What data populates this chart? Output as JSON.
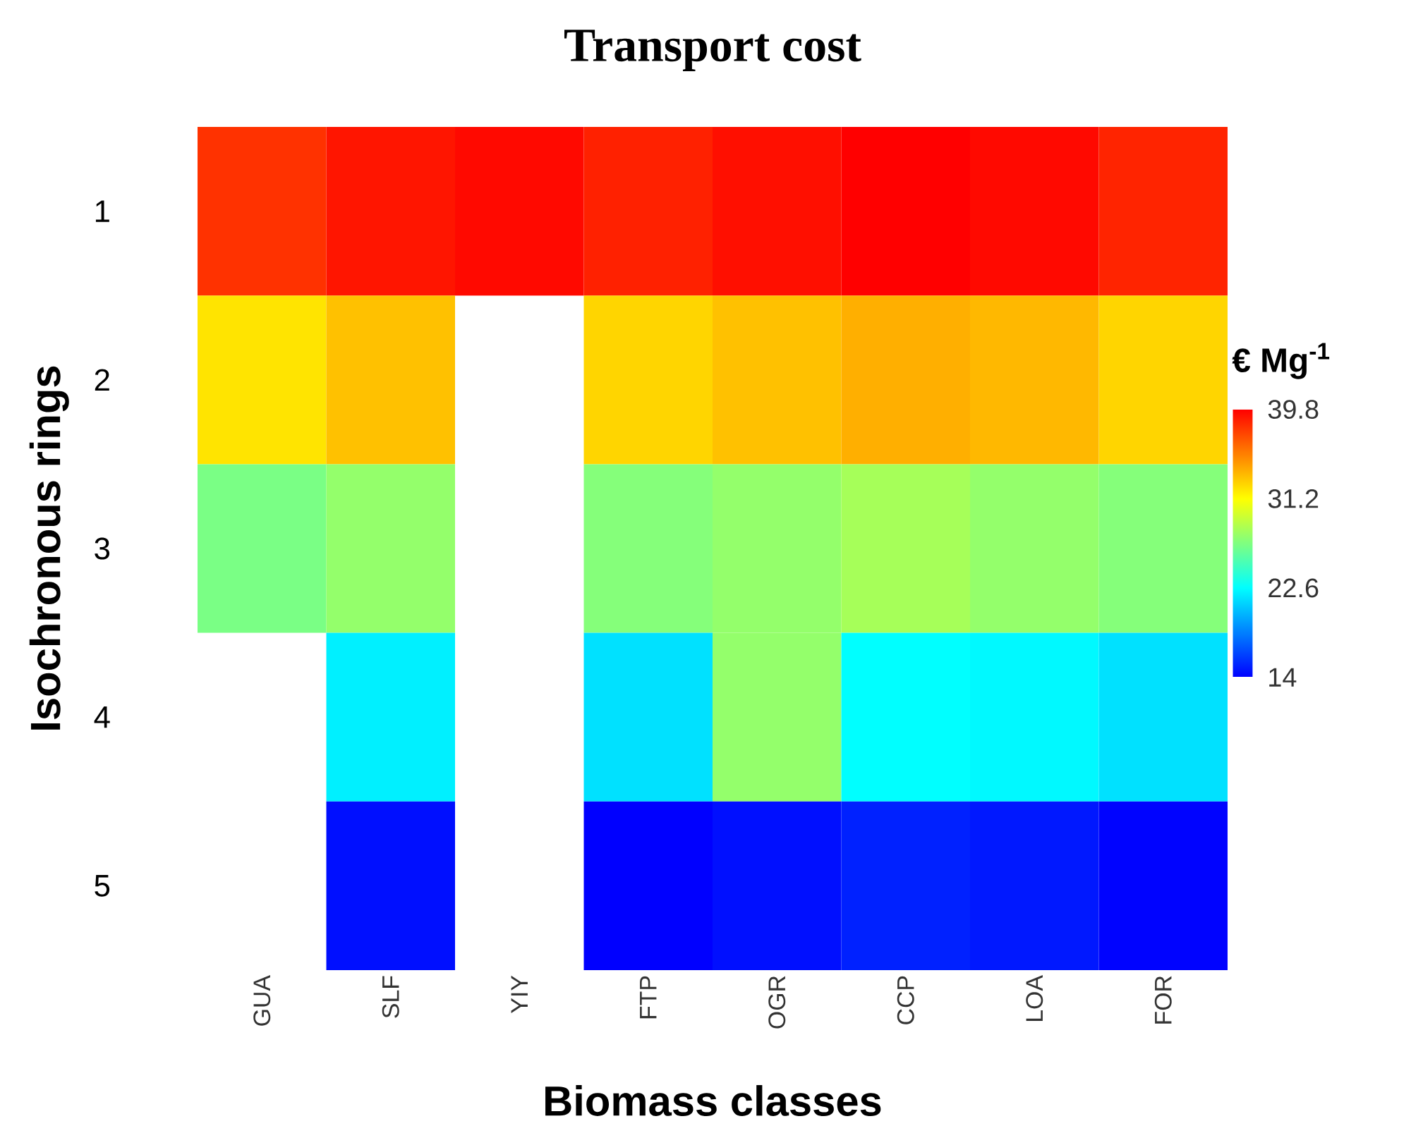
{
  "chart_data": {
    "type": "heatmap",
    "title": "Transport cost",
    "xlabel": "Biomass classes",
    "ylabel": "Isochronous rings",
    "clabel": "€ Mg$^{-1}$",
    "categories": [
      "GUA",
      "SLF",
      "YIY",
      "FTP",
      "OGR",
      "CCP",
      "LOA",
      "FOR"
    ],
    "y_categories": [
      "1",
      "2",
      "3",
      "4",
      "5"
    ],
    "cells": [
      [
        38.1,
        39.1,
        39.5,
        38.7,
        39.3,
        39.8,
        39.5,
        38.6
      ],
      [
        32.1,
        33.3,
        null,
        32.6,
        33.3,
        33.9,
        33.6,
        32.6
      ],
      [
        26.7,
        27.6,
        null,
        27.1,
        27.6,
        28.2,
        27.6,
        27.1
      ],
      [
        null,
        22.1,
        null,
        21.6,
        27.6,
        22.6,
        22.4,
        21.6
      ],
      [
        null,
        14.5,
        null,
        14,
        14.5,
        15.1,
        14.8,
        14.1
      ]
    ],
    "clim": [
      14,
      39.8
    ],
    "cticks": [
      14,
      22.6,
      31.2,
      39.8
    ]
  }
}
